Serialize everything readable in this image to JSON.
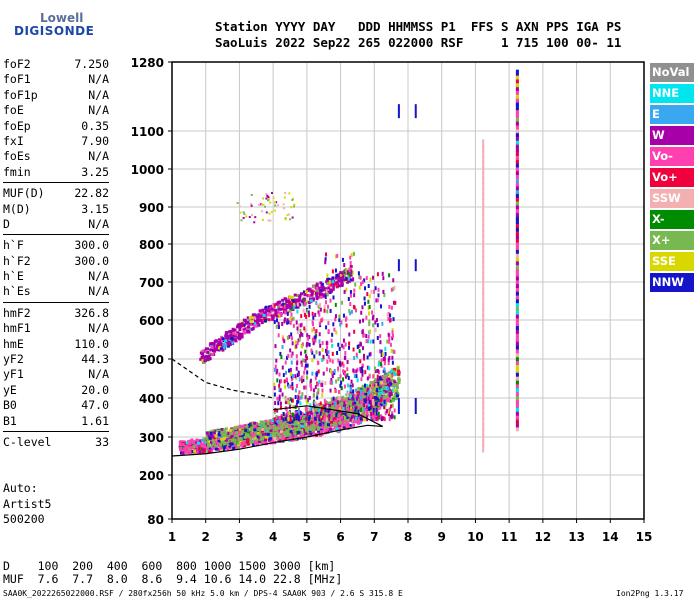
{
  "logo": {
    "top": "Lowell",
    "bottom": "DIGISONDE"
  },
  "header": {
    "line1": "Station YYYY DAY   DDD HHMMSS P1  FFS S AXN PPS IGA PS",
    "line2": "SaoLuis 2022 Sep22 265 022000 RSF     1 715 100 00- 11"
  },
  "params": {
    "group1": [
      {
        "k": "foF2",
        "v": "7.250"
      },
      {
        "k": "foF1",
        "v": "N/A"
      },
      {
        "k": "foF1p",
        "v": "N/A"
      },
      {
        "k": "foE",
        "v": "N/A"
      },
      {
        "k": "foEp",
        "v": "0.35"
      },
      {
        "k": "fxI",
        "v": "7.90"
      },
      {
        "k": "foEs",
        "v": "N/A"
      },
      {
        "k": "fmin",
        "v": "3.25"
      }
    ],
    "group2": [
      {
        "k": "MUF(D)",
        "v": "22.82"
      },
      {
        "k": "M(D)",
        "v": "3.15"
      },
      {
        "k": "D",
        "v": "N/A"
      }
    ],
    "group3": [
      {
        "k": "h`F",
        "v": "300.0"
      },
      {
        "k": "h`F2",
        "v": "300.0"
      },
      {
        "k": "h`E",
        "v": "N/A"
      },
      {
        "k": "h`Es",
        "v": "N/A"
      }
    ],
    "group4": [
      {
        "k": "hmF2",
        "v": "326.8"
      },
      {
        "k": "hmF1",
        "v": "N/A"
      },
      {
        "k": "hmE",
        "v": "110.0"
      },
      {
        "k": "yF2",
        "v": "44.3"
      },
      {
        "k": "yF1",
        "v": "N/A"
      },
      {
        "k": "yE",
        "v": "20.0"
      },
      {
        "k": "B0",
        "v": "47.0"
      },
      {
        "k": "B1",
        "v": "1.61"
      }
    ],
    "group5": [
      {
        "k": "C-level",
        "v": "33"
      }
    ]
  },
  "auto": {
    "line1": "Auto:",
    "line2": "Artist5",
    "line3": "500200"
  },
  "dmuf": {
    "line1": "D    100  200  400  600  800 1000 1500 3000 [km]",
    "line2": "MUF  7.6  7.7  8.0  8.6  9.4 10.6 14.0 22.8 [MHz]"
  },
  "footer": {
    "left": "SAA0K_2022265022000.RSF / 280fx256h 50 kHz 5.0 km / DPS-4 SAA0K 903 / 2.6 S 315.8 E",
    "right": "Ion2Png 1.3.17"
  },
  "legend": [
    {
      "label": "NoVal",
      "color": "#909090"
    },
    {
      "label": "NNE",
      "color": "#00e5ee"
    },
    {
      "label": "E",
      "color": "#3aa8f0"
    },
    {
      "label": "W",
      "color": "#a800a8"
    },
    {
      "label": "Vo-",
      "color": "#ff40b0"
    },
    {
      "label": "Vo+",
      "color": "#f0003c"
    },
    {
      "label": "SSW",
      "color": "#f4b0b0"
    },
    {
      "label": "X-",
      "color": "#008c00"
    },
    {
      "label": "X+",
      "color": "#78b850"
    },
    {
      "label": "SSE",
      "color": "#d8d800"
    },
    {
      "label": "NNW",
      "color": "#1414c8"
    }
  ],
  "chart_data": {
    "type": "scatter",
    "x_unit": "MHz",
    "y_unit": "km",
    "xlim": [
      1,
      15
    ],
    "ylim": [
      80,
      1280
    ],
    "y_scale": "nonlinear (ionogram virtual height)",
    "y_ticks": [
      80,
      200,
      300,
      400,
      500,
      600,
      700,
      800,
      900,
      1000,
      1100,
      1280
    ],
    "x_ticks": [
      1,
      2,
      3,
      4,
      5,
      6,
      7,
      8,
      9,
      10,
      11,
      12,
      13,
      14,
      15
    ],
    "grid": true,
    "legend_position": "right",
    "echo_traces": [
      {
        "name": "F2 O-trace",
        "color": "#ff40b0",
        "points": [
          [
            1.2,
            270
          ],
          [
            2,
            275
          ],
          [
            3,
            290
          ],
          [
            4,
            305
          ],
          [
            5,
            320
          ],
          [
            6,
            340
          ],
          [
            6.5,
            360
          ],
          [
            7,
            390
          ],
          [
            7.25,
            420
          ]
        ]
      },
      {
        "name": "F2 X-trace",
        "color": "#78b850",
        "points": [
          [
            2,
            290
          ],
          [
            3,
            300
          ],
          [
            4,
            315
          ],
          [
            5,
            335
          ],
          [
            6,
            360
          ],
          [
            7,
            395
          ],
          [
            7.7,
            430
          ]
        ]
      },
      {
        "name": "multiple hop",
        "color": "#a800a8",
        "points": [
          [
            1.8,
            500
          ],
          [
            2.5,
            540
          ],
          [
            3.5,
            600
          ],
          [
            4.5,
            640
          ],
          [
            5.5,
            680
          ],
          [
            6.3,
            720
          ]
        ]
      }
    ],
    "profile": {
      "solid": [
        [
          1.0,
          250
        ],
        [
          2,
          256
        ],
        [
          3,
          268
        ],
        [
          4,
          285
        ],
        [
          5,
          300
        ],
        [
          6,
          318
        ],
        [
          6.8,
          330
        ],
        [
          7.25,
          327
        ],
        [
          6.5,
          360
        ],
        [
          5,
          380
        ],
        [
          4,
          370
        ]
      ],
      "dashed": [
        [
          1.0,
          500
        ],
        [
          1.5,
          470
        ],
        [
          2,
          440
        ],
        [
          2.8,
          420
        ],
        [
          3.5,
          410
        ],
        [
          4,
          400
        ]
      ]
    },
    "vertical_markers_mhz": [
      7.7,
      8.2,
      10.2,
      11.2
    ]
  }
}
